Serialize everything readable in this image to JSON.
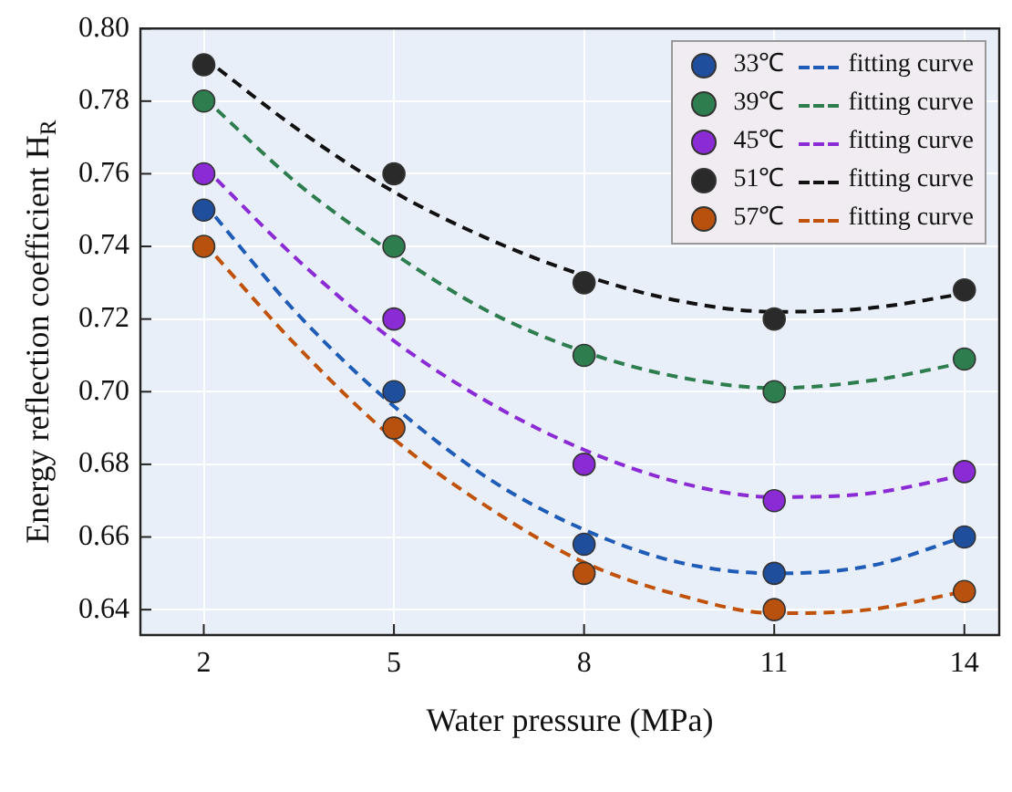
{
  "chart_data": {
    "type": "scatter",
    "xlabel": "Water pressure (MPa)",
    "ylabel": "Energy reflection coefficient H$_{R}$",
    "x": [
      2,
      5,
      8,
      11,
      14
    ],
    "xlim": [
      1,
      14.55
    ],
    "xticks": [
      2,
      5,
      8,
      11,
      14
    ],
    "ylim": [
      0.633,
      0.8
    ],
    "yticks": [
      {
        "value": 0.64,
        "label": "0.64"
      },
      {
        "value": 0.66,
        "label": "0.66"
      },
      {
        "value": 0.68,
        "label": "0.68"
      },
      {
        "value": 0.7,
        "label": "0.70"
      },
      {
        "value": 0.72,
        "label": "0.72"
      },
      {
        "value": 0.74,
        "label": "0.74"
      },
      {
        "value": 0.76,
        "label": "0.76"
      },
      {
        "value": 0.78,
        "label": "0.78"
      },
      {
        "value": 0.8,
        "label": "0.80"
      }
    ],
    "grid": true,
    "legend": "top right",
    "series": [
      {
        "name": "33℃",
        "marker": "circle",
        "color": "#1f4e9c",
        "values": [
          0.75,
          0.7,
          0.658,
          0.65,
          0.66
        ]
      },
      {
        "name": "fitting curve",
        "type": "line",
        "marker": "none",
        "line_style": "dashed",
        "color": "#1f5cb8",
        "x": [
          2,
          3.5,
          5,
          6.5,
          8,
          9.5,
          11,
          12.5,
          14
        ],
        "values": [
          0.752,
          0.721,
          0.696,
          0.676,
          0.662,
          0.653,
          0.65,
          0.652,
          0.66
        ]
      },
      {
        "name": "39℃",
        "marker": "circle",
        "color": "#2e7d4f",
        "values": [
          0.78,
          0.74,
          0.71,
          0.7,
          0.709
        ]
      },
      {
        "name": "fitting curve",
        "type": "line",
        "marker": "none",
        "line_style": "dashed",
        "color": "#2e7d4f",
        "x": [
          2,
          3.5,
          5,
          6.5,
          8,
          9.5,
          11,
          12.5,
          14
        ],
        "values": [
          0.781,
          0.757,
          0.738,
          0.722,
          0.711,
          0.704,
          0.701,
          0.703,
          0.708
        ]
      },
      {
        "name": "45℃",
        "marker": "circle",
        "color": "#8a2bd6",
        "values": [
          0.76,
          0.72,
          0.68,
          0.67,
          0.678
        ]
      },
      {
        "name": "fitting curve",
        "type": "line",
        "marker": "none",
        "line_style": "dashed",
        "color": "#8a2bd6",
        "x": [
          2,
          3.5,
          5,
          6.5,
          8,
          9.5,
          11,
          12.5,
          14
        ],
        "values": [
          0.762,
          0.736,
          0.714,
          0.697,
          0.684,
          0.675,
          0.671,
          0.672,
          0.677
        ]
      },
      {
        "name": "51℃",
        "marker": "circle",
        "color": "#2a2a2a",
        "values": [
          0.79,
          0.76,
          0.73,
          0.72,
          0.728
        ]
      },
      {
        "name": "fitting curve",
        "type": "line",
        "marker": "none",
        "line_style": "dashed",
        "color": "#111111",
        "x": [
          2,
          3.5,
          5,
          6.5,
          8,
          9.5,
          11,
          12.5,
          14
        ],
        "values": [
          0.792,
          0.772,
          0.755,
          0.742,
          0.732,
          0.725,
          0.722,
          0.723,
          0.727
        ]
      },
      {
        "name": "57℃",
        "marker": "circle",
        "color": "#b8500e",
        "values": [
          0.74,
          0.69,
          0.65,
          0.64,
          0.645
        ]
      },
      {
        "name": "fitting curve",
        "type": "line",
        "marker": "none",
        "line_style": "dashed",
        "color": "#c0520a",
        "x": [
          2,
          3.5,
          5,
          6.5,
          8,
          9.5,
          11,
          12.5,
          14
        ],
        "values": [
          0.741,
          0.712,
          0.687,
          0.668,
          0.653,
          0.644,
          0.639,
          0.64,
          0.645
        ]
      }
    ]
  }
}
